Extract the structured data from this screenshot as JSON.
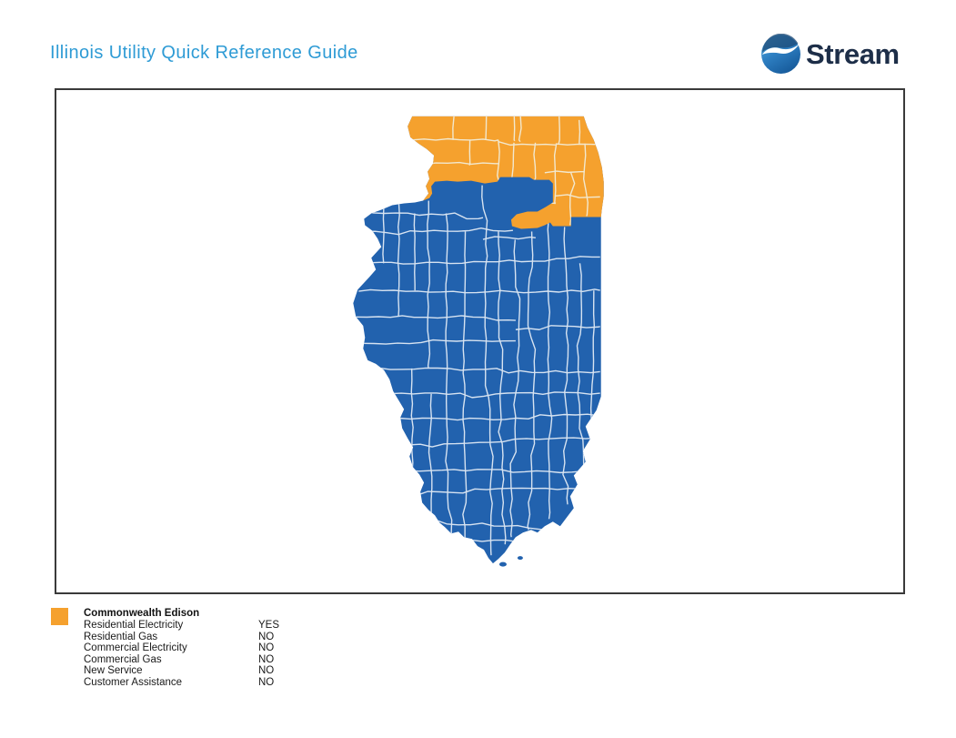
{
  "page": {
    "title": "Illinois Utility Quick Reference Guide",
    "title_color": "#2E9BD5",
    "background_color": "#FFFFFF"
  },
  "logo": {
    "text": "Stream",
    "text_color": "#1D2E48",
    "icon": "stream-swoosh-icon",
    "icon_gradient_top": "#55ABE0",
    "icon_gradient_bottom": "#155898"
  },
  "map": {
    "state": "Illinois",
    "base_region_color": "#2262AE",
    "base_county_line_color": "#D7E3F1",
    "highlight_region_name": "Commonwealth Edison",
    "highlight_region_color": "#F5A12E",
    "highlight_county_line_color": "#F2E8CE",
    "panel_border_color": "#3A3A3A"
  },
  "legend": {
    "swatch_color": "#F5A12E",
    "title": "Commonwealth Edison",
    "rows": [
      {
        "label": "Residential Electricity",
        "value": "YES"
      },
      {
        "label": "Residential Gas",
        "value": "NO"
      },
      {
        "label": "Commercial Electricity",
        "value": "NO"
      },
      {
        "label": "Commercial Gas",
        "value": "NO"
      },
      {
        "label": "New Service",
        "value": "NO"
      },
      {
        "label": "Customer Assistance",
        "value": "NO"
      }
    ]
  }
}
